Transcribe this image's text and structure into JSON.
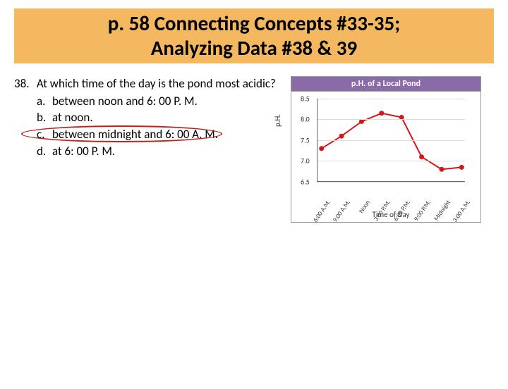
{
  "title": {
    "line1": "p. 58 Connecting Concepts #33-35;",
    "line2": "Analyzing Data #38 & 39"
  },
  "question": {
    "number": "38.",
    "stem": "At which time of the day is the pond most acidic?",
    "options": [
      {
        "letter": "a.",
        "text": "between noon and 6: 00 P. M."
      },
      {
        "letter": "b.",
        "text": "at noon."
      },
      {
        "letter": "c.",
        "text": "between midnight and 6: 00 A. M."
      },
      {
        "letter": "d.",
        "text": "at 6: 00 P. M."
      }
    ],
    "circled_index": 2
  },
  "chart": {
    "title": "p.H. of a Local Pond",
    "ylabel": "p.H.",
    "xlabel": "Time of Day",
    "ylim": [
      6.5,
      8.5
    ],
    "yticks": [
      6.5,
      7.0,
      7.5,
      8.0,
      8.5
    ],
    "xticks": [
      "6:00 A.M.",
      "9:00 A.M.",
      "Noon",
      "3:00 P.M.",
      "6:00 P.M.",
      "9:00 P.M.",
      "Midnight",
      "3:00 A.M."
    ],
    "values": [
      7.3,
      7.6,
      7.95,
      8.15,
      8.05,
      7.1,
      6.8,
      6.85
    ],
    "line_color": "#d31818",
    "marker_color": "#d31818",
    "grid_color": "#dddddd",
    "background_color": "#ffffff",
    "title_bg": "#8a6aa8",
    "title_color": "#ffffff",
    "marker_size": 3.5,
    "line_width": 2,
    "label_fontsize": 11,
    "tick_fontsize": 10
  }
}
